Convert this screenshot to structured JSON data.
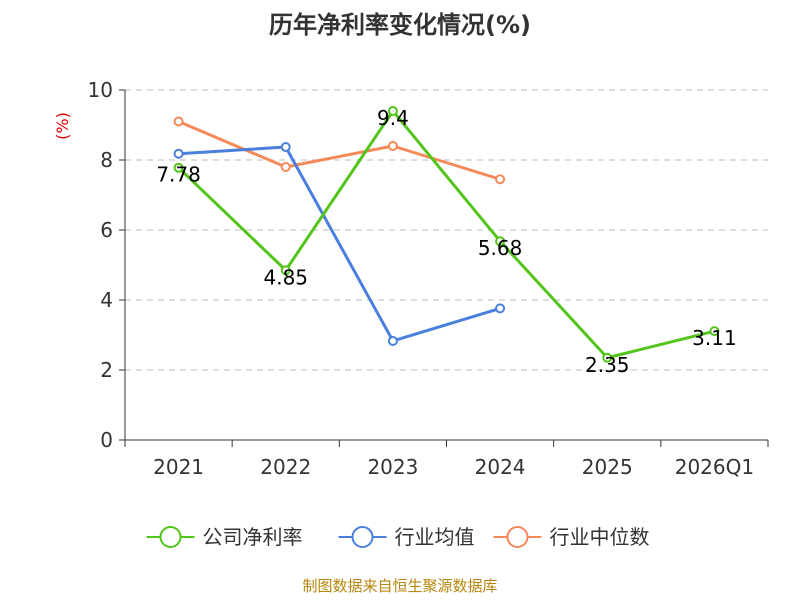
{
  "chart_data": {
    "type": "line",
    "title": "历年净利率变化情况(%)",
    "ylabel": "(%)",
    "xlabel": "",
    "categories": [
      "2021",
      "2022",
      "2023",
      "2024",
      "2025",
      "2026Q1"
    ],
    "ylim": [
      0,
      10
    ],
    "yticks": [
      "0",
      "2",
      "4",
      "6",
      "8",
      "10"
    ],
    "grid": true,
    "legend_position": "bottom",
    "series": [
      {
        "name": "公司净利率",
        "color": "#52c41a",
        "values": [
          7.78,
          4.85,
          9.4,
          5.68,
          2.35,
          3.11
        ],
        "labels": [
          "7.78",
          "4.85",
          "9.4",
          "5.68",
          "2.35",
          "3.11"
        ]
      },
      {
        "name": "行业均值",
        "color": "#4a7fdd",
        "values": [
          8.18,
          8.37,
          2.83,
          3.76,
          null,
          null
        ]
      },
      {
        "name": "行业中位数",
        "color": "#f5895a",
        "values": [
          9.1,
          7.8,
          8.4,
          7.45,
          null,
          null
        ]
      }
    ],
    "source": "制图数据来自恒生聚源数据库"
  }
}
